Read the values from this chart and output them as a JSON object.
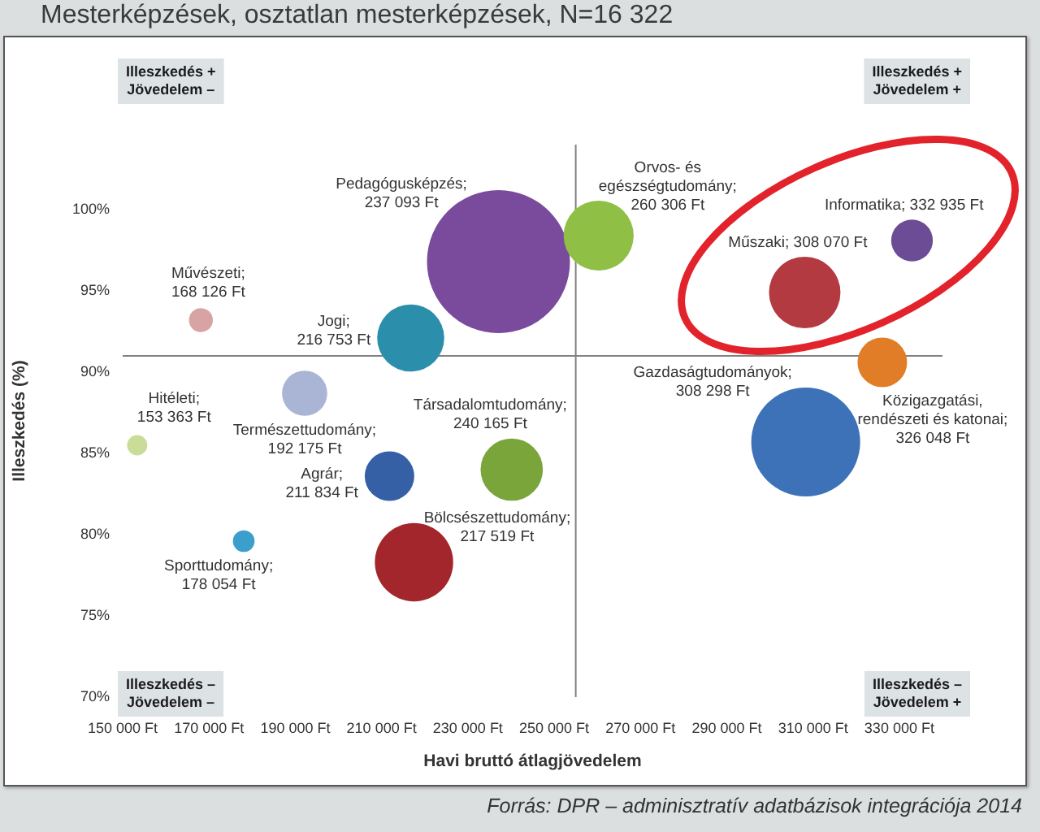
{
  "chart_data": {
    "type": "bubble",
    "title": "Mesterképzések, osztatlan mesterképzések, N=16 322",
    "xlabel": "Havi bruttó átlagjövedelem",
    "ylabel": "Illeszkedés (%)",
    "x": [
      153363,
      168126,
      178054,
      192175,
      211834,
      216753,
      217519,
      237093,
      240165,
      260306,
      308070,
      308298,
      326048,
      332935
    ],
    "values": [
      85.5,
      93.2,
      79.6,
      88.7,
      83.6,
      92.1,
      78.3,
      96.8,
      84.0,
      98.4,
      94.9,
      85.7,
      90.6,
      98.1
    ],
    "sizes": [
      0.02,
      0.028,
      0.023,
      0.1,
      0.12,
      0.22,
      0.3,
      1,
      0.19,
      0.24,
      0.25,
      0.58,
      0.12,
      0.085
    ],
    "colors": [
      "#c9dd98",
      "#d8a3a3",
      "#3c9fcb",
      "#aab5d6",
      "#3560a6",
      "#2b8eab",
      "#a3262c",
      "#7a4b9c",
      "#79a53a",
      "#90bf45",
      "#b23a40",
      "#3d72b8",
      "#e07d26",
      "#6b4c95"
    ],
    "xlim": [
      150000,
      340000
    ],
    "xticks": [
      {
        "value": 150000,
        "label": "150 000 Ft"
      },
      {
        "value": 170000,
        "label": "170 000 Ft"
      },
      {
        "value": 190000,
        "label": "190 000 Ft"
      },
      {
        "value": 210000,
        "label": "210 000 Ft"
      },
      {
        "value": 230000,
        "label": "230 000 Ft"
      },
      {
        "value": 250000,
        "label": "250 000 Ft"
      },
      {
        "value": 270000,
        "label": "270 000 Ft"
      },
      {
        "value": 290000,
        "label": "290 000 Ft"
      },
      {
        "value": 310000,
        "label": "310 000 Ft"
      },
      {
        "value": 330000,
        "label": "330 000 Ft"
      }
    ],
    "ylim": [
      70,
      104
    ],
    "yticks": [
      {
        "value": 70,
        "label": "70%"
      },
      {
        "value": 75,
        "label": "75%"
      },
      {
        "value": 80,
        "label": "80%"
      },
      {
        "value": 85,
        "label": "85%"
      },
      {
        "value": 90,
        "label": "90%"
      },
      {
        "value": 95,
        "label": "95%"
      },
      {
        "value": 100,
        "label": "100%"
      }
    ],
    "ref_lines": [
      {
        "axis": "x",
        "value": 255000,
        "color": "#808080"
      },
      {
        "axis": "y",
        "value": 91,
        "color": "#808080"
      }
    ],
    "annotations": [
      "Illeszkedés + Jövedelem –",
      "Illeszkedés + Jövedelem +",
      "Illeszkedés – Jövedelem –",
      "Illeszkedés – Jövedelem +",
      "Forrás: DPR – adminisztratív adatbázisok integrációja 2014",
      "Pedagógusképzés; 237 093 Ft",
      {
        "text": "Hitéleti; 153 363 Ft",
        "x": 153363,
        "y": 85.5
      },
      {
        "text": "Művészeti; 168 126 Ft",
        "x": 168126,
        "y": 93.2
      },
      {
        "text": "Sporttudomány; 178 054 Ft",
        "x": 178054,
        "y": 79.6
      },
      {
        "text": "Természettudomány; 192 175 Ft",
        "x": 192175,
        "y": 88.7
      },
      {
        "text": "Agrár; 211 834 Ft",
        "x": 211834,
        "y": 83.6
      },
      {
        "text": "Jogi; 216 753 Ft",
        "x": 216753,
        "y": 92.1
      },
      {
        "text": "Bölcsészettudomány; 217 519 Ft",
        "x": 217519,
        "y": 78.3
      },
      {
        "text": "Társadalomtudomány; 240 165 Ft",
        "x": 240165,
        "y": 84.0
      },
      {
        "text": "Orvos- és egészségtudomány; 260 306 Ft",
        "x": 260306,
        "y": 98.4
      },
      {
        "text": "Műszaki; 308 070 Ft",
        "x": 308070,
        "y": 94.9
      },
      {
        "text": "Gazdaságtudományok; 308 298 Ft",
        "x": 308298,
        "y": 85.7
      },
      {
        "text": "Közigazgatási, rendészeti és katonai; 326 048 Ft",
        "x": 326048,
        "y": 90.6
      },
      {
        "text": "Informatika; 332 935 Ft",
        "x": 332935,
        "y": 98.1
      }
    ]
  }
}
